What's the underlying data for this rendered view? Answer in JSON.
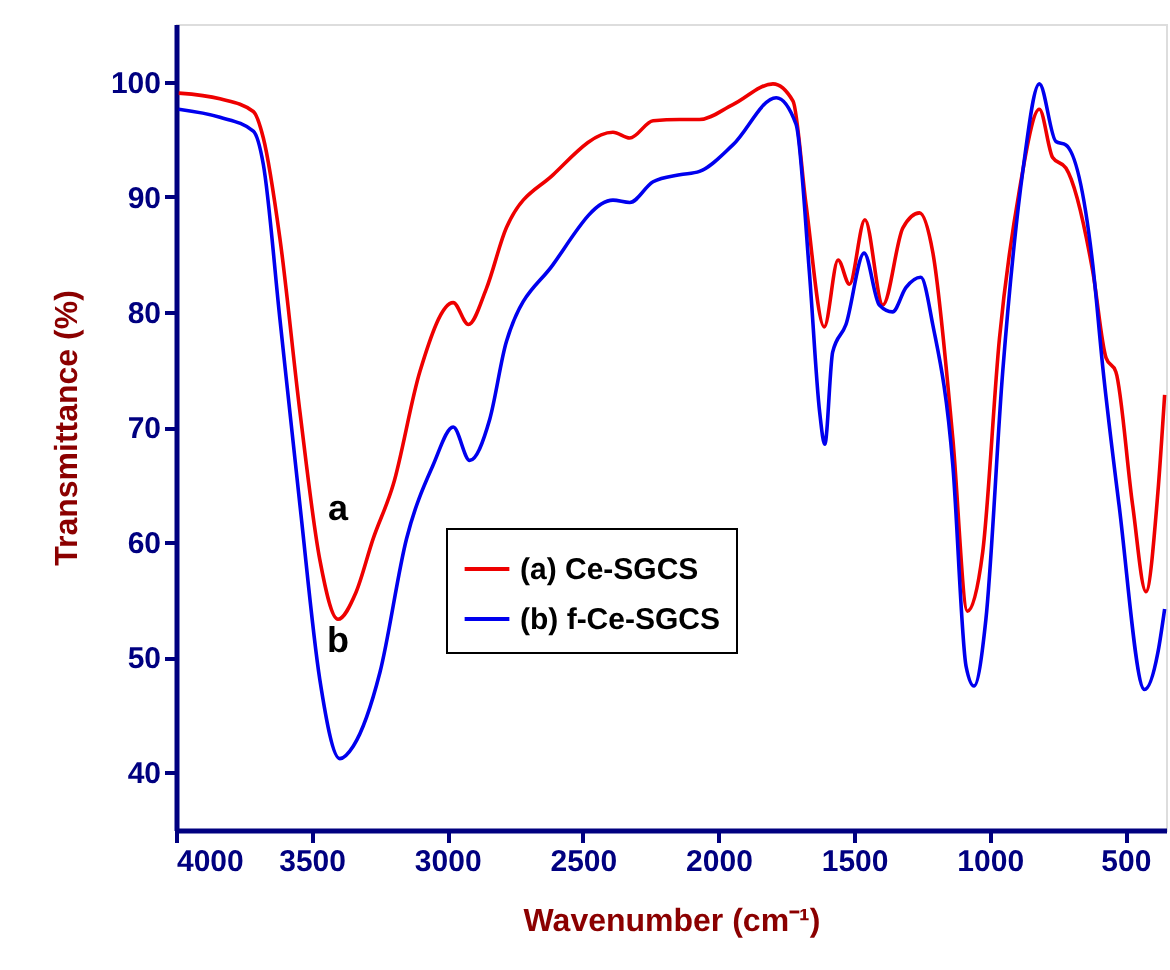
{
  "chart_data": {
    "type": "line",
    "xlabel": "Wavenumber (cm⁻¹)",
    "ylabel": "Transmittance (%)",
    "xlim": [
      4000,
      350
    ],
    "ylim": [
      35,
      105
    ],
    "xticks": [
      4000,
      3500,
      3000,
      2500,
      2000,
      1500,
      1000,
      500
    ],
    "yticks": [
      40,
      50,
      60,
      70,
      80,
      90,
      100
    ],
    "legend": "bottom",
    "grid": false,
    "marker": "none",
    "line_style": "solid",
    "annotations": [
      "a",
      "b"
    ],
    "series": [
      {
        "name": "(a) Ce-SGCS",
        "color": "#ee0000",
        "x": [
          3990,
          3838,
          3715,
          3678,
          3617,
          3543,
          3470,
          3403,
          3337,
          3273,
          3199,
          3101,
          2978,
          2922,
          2856,
          2782,
          2610,
          2389,
          2327,
          2241,
          2143,
          2070,
          1947,
          1799,
          1725,
          1677,
          1610,
          1559,
          1517,
          1460,
          1394,
          1320,
          1259,
          1210,
          1136,
          1082,
          1026,
          964,
          891,
          817,
          768,
          719,
          620,
          571,
          535,
          473,
          424,
          380,
          355
        ],
        "values": [
          99.0,
          98.5,
          97.4,
          95.1,
          86.4,
          71.3,
          58.5,
          53.3,
          55.6,
          60.3,
          65.0,
          74.8,
          80.8,
          78.9,
          82.0,
          87.3,
          91.9,
          95.6,
          95.1,
          96.6,
          96.7,
          96.7,
          98.0,
          99.8,
          98.3,
          89.3,
          78.7,
          84.5,
          82.4,
          88.0,
          80.6,
          87.3,
          88.6,
          85.2,
          69.0,
          54.0,
          59.1,
          77.7,
          90.5,
          97.6,
          93.4,
          92.5,
          83.5,
          76.0,
          74.8,
          63.2,
          55.7,
          64.3,
          72.8
        ]
      },
      {
        "name": "(b) f-Ce-SGCS",
        "color": "#0000ee",
        "x": [
          3990,
          3838,
          3715,
          3678,
          3617,
          3543,
          3470,
          3396,
          3346,
          3248,
          3150,
          3052,
          2978,
          2917,
          2843,
          2782,
          2610,
          2389,
          2327,
          2241,
          2143,
          2070,
          1947,
          1787,
          1714,
          1665,
          1627,
          1608,
          1579,
          1530,
          1463,
          1407,
          1358,
          1309,
          1254,
          1210,
          1136,
          1087,
          1058,
          1014,
          952,
          878,
          817,
          756,
          719,
          620,
          584,
          523,
          429,
          380,
          355
        ],
        "values": [
          97.6,
          96.9,
          95.7,
          92.8,
          79.4,
          63.2,
          48.1,
          41.2,
          42.3,
          48.7,
          60.3,
          66.7,
          70.0,
          67.1,
          70.7,
          77.4,
          84.1,
          89.7,
          89.5,
          91.3,
          91.9,
          92.2,
          94.5,
          98.6,
          96.3,
          83.5,
          71.3,
          68.5,
          76.5,
          78.9,
          85.1,
          80.6,
          80.0,
          82.1,
          83.0,
          78.9,
          66.7,
          49.2,
          47.5,
          53.3,
          74.8,
          92.2,
          99.8,
          94.8,
          94.5,
          84.1,
          75.4,
          63.2,
          47.2,
          50.4,
          54.2
        ]
      }
    ]
  }
}
